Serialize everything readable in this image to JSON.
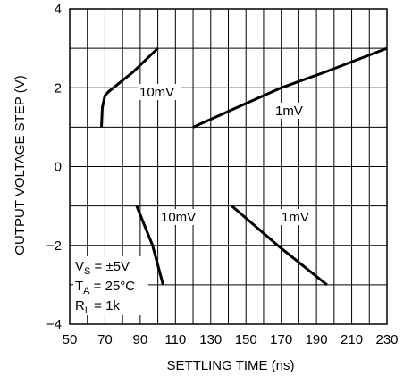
{
  "chart_data": {
    "type": "line",
    "title": "",
    "xlabel": "SETTLING TIME (ns)",
    "ylabel": "OUTPUT VOLTAGE STEP (V)",
    "xlim": [
      50,
      230
    ],
    "ylim": [
      -4,
      4
    ],
    "x_ticks": [
      "50",
      "70",
      "90",
      "110",
      "130",
      "150",
      "170",
      "190",
      "210",
      "230"
    ],
    "y_ticks": [
      "4",
      "2",
      "0",
      "−2",
      "−4"
    ],
    "grid": true,
    "series": [
      {
        "name": "10mV",
        "points": [
          [
            68,
            1.0
          ],
          [
            68.5,
            1.5
          ],
          [
            70,
            1.8
          ],
          [
            72,
            1.9
          ],
          [
            86,
            2.4
          ],
          [
            100,
            3.0
          ]
        ]
      },
      {
        "name": "1mV",
        "points": [
          [
            120,
            1.0
          ],
          [
            145,
            1.5
          ],
          [
            170,
            2.0
          ],
          [
            195,
            2.4
          ],
          [
            230,
            3.0
          ]
        ]
      },
      {
        "name": "10mV",
        "points": [
          [
            88,
            -1.0
          ],
          [
            97,
            -2.0
          ],
          [
            103,
            -3.0
          ]
        ]
      },
      {
        "name": "1mV",
        "points": [
          [
            142,
            -1.0
          ],
          [
            168,
            -2.0
          ],
          [
            196,
            -3.0
          ]
        ]
      }
    ],
    "conditions": [
      {
        "base": "V",
        "sub": "S",
        "rest": " = ±5V"
      },
      {
        "base": "T",
        "sub": "A",
        "rest": " = 25°C"
      },
      {
        "base": "R",
        "sub": "L",
        "rest": " = 1k"
      }
    ]
  }
}
